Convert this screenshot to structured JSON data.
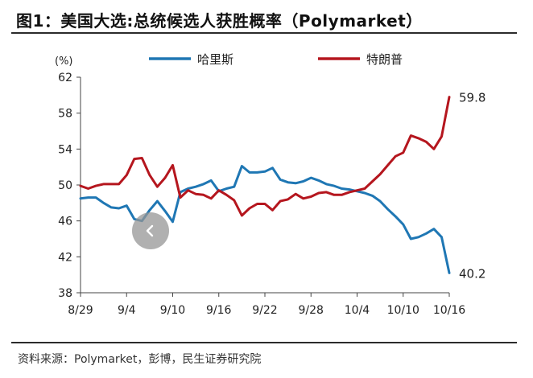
{
  "title": "图1：美国大选:总统候选人获胜概率（Polymarket）",
  "source": "资料来源：Polymarket，彭博，民生证券研究院",
  "chart_data": {
    "type": "line",
    "y_unit": "(%)",
    "ylim": [
      38,
      62
    ],
    "yticks": [
      38,
      42,
      46,
      50,
      54,
      58,
      62
    ],
    "xtick_labels": [
      "8/29",
      "9/4",
      "9/10",
      "9/16",
      "9/22",
      "9/28",
      "10/4",
      "10/10",
      "10/16"
    ],
    "xtick_index": [
      0,
      6,
      12,
      18,
      24,
      30,
      36,
      42,
      48
    ],
    "n_points": 49,
    "grid": false,
    "legend_position": "top",
    "series": [
      {
        "name": "哈里斯",
        "color": "#1f77b4",
        "values": [
          48.5,
          48.6,
          48.6,
          48.0,
          47.5,
          47.4,
          47.7,
          46.2,
          46.0,
          47.2,
          48.2,
          47.1,
          45.9,
          49.2,
          49.6,
          49.8,
          50.1,
          50.5,
          49.3,
          49.6,
          49.8,
          52.1,
          51.4,
          51.4,
          51.5,
          51.9,
          50.6,
          50.3,
          50.2,
          50.4,
          50.8,
          50.5,
          50.1,
          49.9,
          49.6,
          49.5,
          49.3,
          49.1,
          48.8,
          48.2,
          47.3,
          46.5,
          45.6,
          44.0,
          44.2,
          44.6,
          45.1,
          44.2,
          40.2
        ]
      },
      {
        "name": "特朗普",
        "color": "#b5161e",
        "values": [
          49.9,
          49.6,
          49.9,
          50.1,
          50.1,
          50.1,
          51.1,
          52.9,
          53.0,
          51.1,
          49.8,
          50.8,
          52.2,
          48.6,
          49.4,
          49.0,
          48.9,
          48.5,
          49.4,
          48.9,
          48.3,
          46.6,
          47.4,
          47.9,
          47.9,
          47.2,
          48.2,
          48.4,
          49.0,
          48.5,
          48.7,
          49.1,
          49.2,
          48.9,
          48.9,
          49.2,
          49.4,
          49.6,
          50.4,
          51.2,
          52.2,
          53.2,
          53.6,
          55.5,
          55.2,
          54.8,
          54.0,
          55.4,
          59.8
        ]
      }
    ],
    "annotations": [
      {
        "series": "特朗普",
        "text": "59.8"
      },
      {
        "series": "哈里斯",
        "text": "40.2"
      }
    ]
  },
  "nav": {
    "icon": "chevron-left-icon",
    "glyph": "‹"
  }
}
